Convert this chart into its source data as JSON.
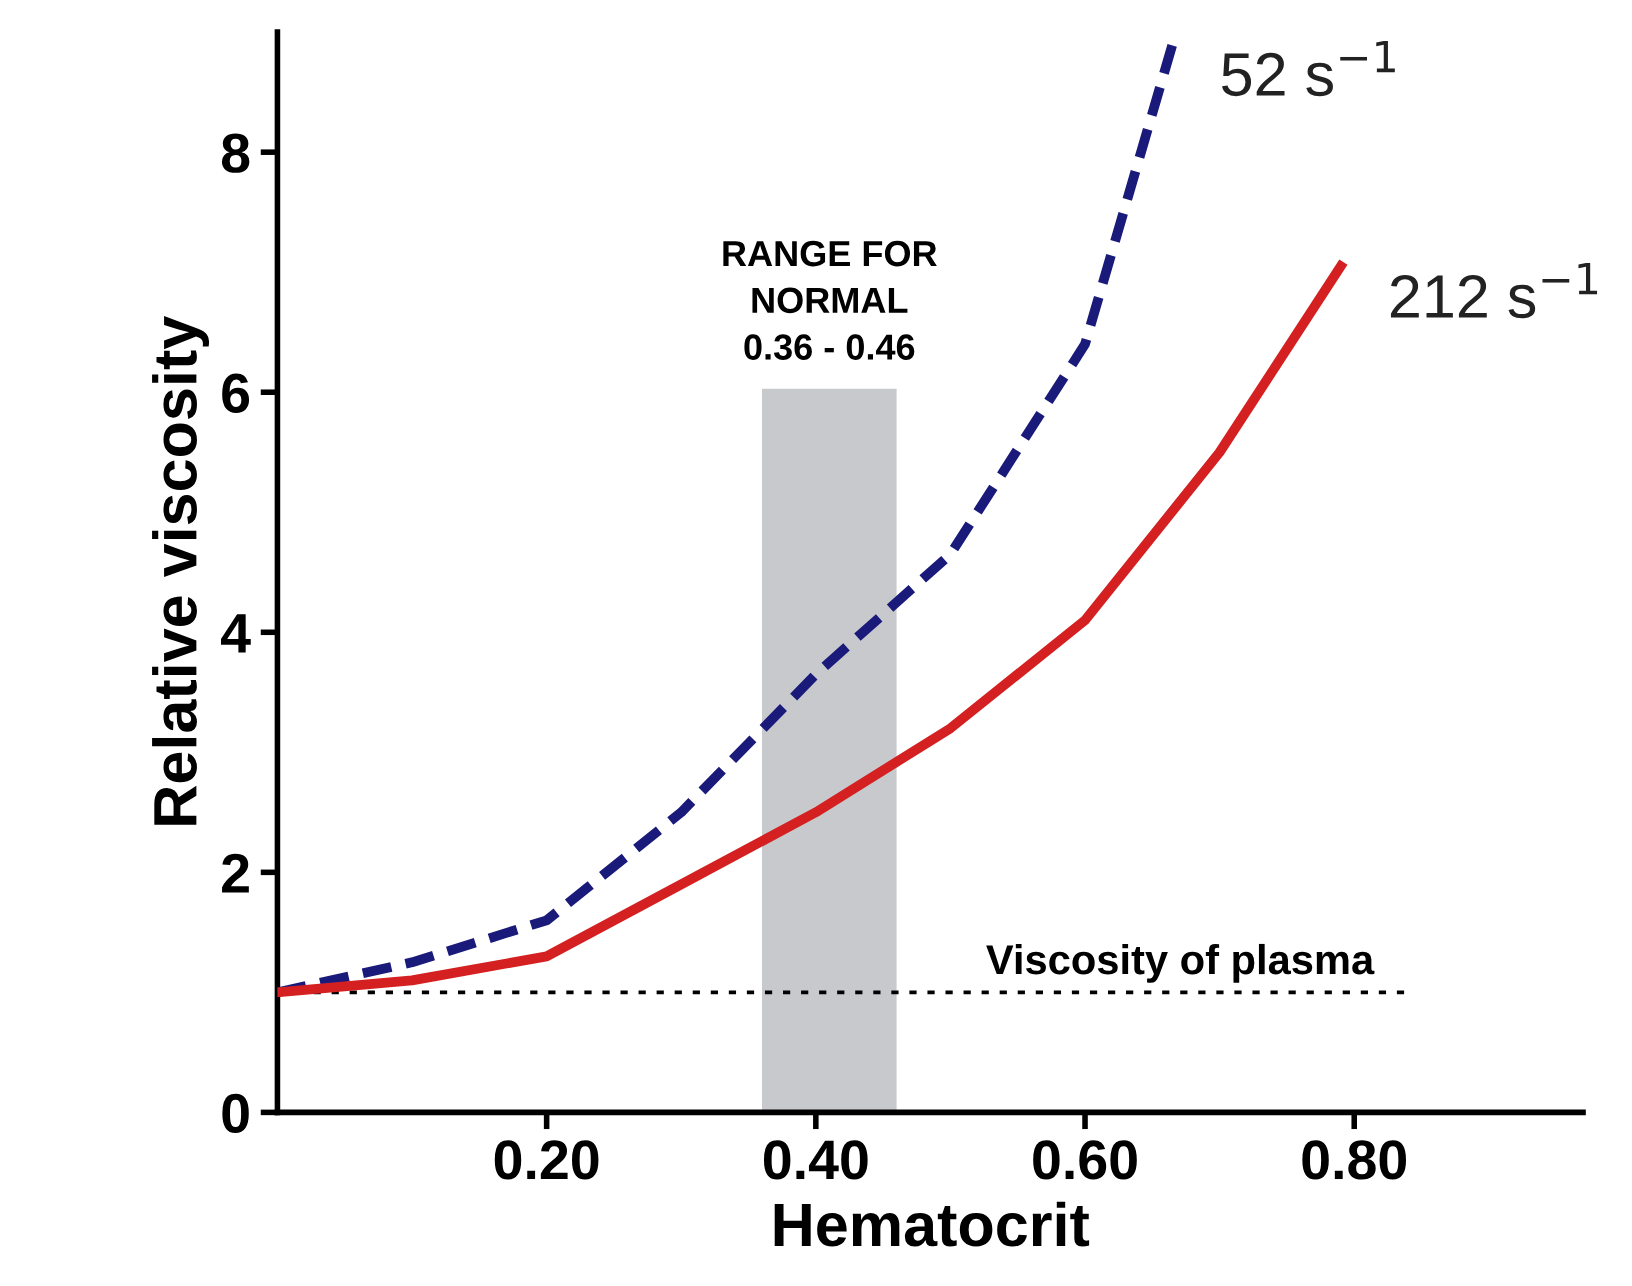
{
  "chart_data": {
    "type": "line",
    "xlabel": "Hematocrit",
    "ylabel": "Relative viscosity",
    "xlim": [
      0,
      0.97
    ],
    "ylim": [
      0,
      9.0
    ],
    "xticks": [
      {
        "value": 0.2,
        "label": "0.20"
      },
      {
        "value": 0.4,
        "label": "0.40"
      },
      {
        "value": 0.6,
        "label": "0.60"
      },
      {
        "value": 0.8,
        "label": "0.80"
      }
    ],
    "yticks": [
      0,
      2,
      4,
      6,
      8
    ],
    "series": [
      {
        "name": "52 s$^{−1}$",
        "color": "#1a1a7a",
        "line_style": "dashed",
        "x": [
          0,
          0.1,
          0.2,
          0.3,
          0.4,
          0.5,
          0.6,
          0.665
        ],
        "values": [
          1.0,
          1.25,
          1.6,
          2.5,
          3.65,
          4.65,
          6.4,
          8.9
        ]
      },
      {
        "name": "212 s$^{−1}$",
        "color": "#d42020",
        "line_style": "solid",
        "x": [
          0,
          0.1,
          0.2,
          0.3,
          0.4,
          0.5,
          0.6,
          0.7,
          0.79
        ],
        "values": [
          1.0,
          1.1,
          1.3,
          1.9,
          2.5,
          3.2,
          4.1,
          5.5,
          7.05
        ]
      }
    ],
    "bands": [
      {
        "axis": "x",
        "from": 0.36,
        "to": 0.46,
        "label": "RANGE FOR\nNORMAL\n0.36 - 0.46",
        "color": "#c8c9cc"
      }
    ],
    "ref_lines": [
      {
        "axis": "y",
        "value": 1,
        "label": "Viscosity of plasma",
        "line_style": "dotted",
        "color": "#000000"
      }
    ],
    "grid": false,
    "legend": false
  }
}
